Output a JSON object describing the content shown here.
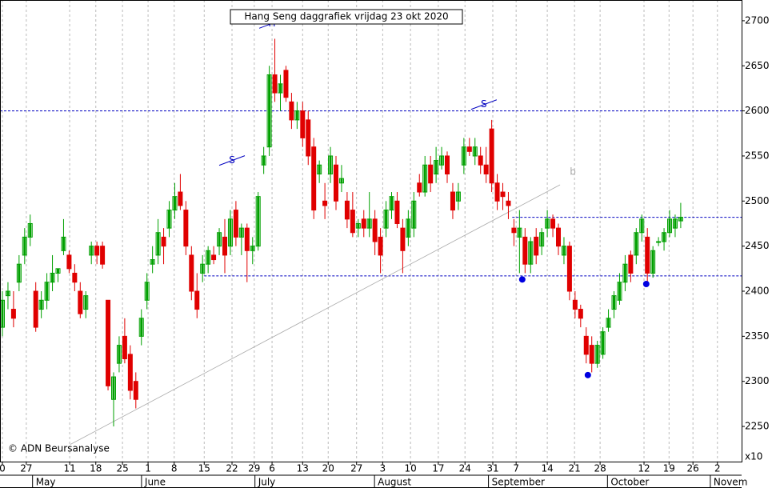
{
  "chart_data": {
    "type": "candlestick",
    "title": "Hang Seng daggrafiek vrijdag 23 okt 2020",
    "credit": "© ADN Beursanalyse",
    "multiplier": "x10",
    "colors": {
      "up": "#00a000",
      "down": "#e00000"
    },
    "xlim": [
      -0.43,
      132.95
    ],
    "ylim": [
      2211,
      2723
    ],
    "yticks": [
      2250,
      2300,
      2350,
      2400,
      2450,
      2500,
      2550,
      2600,
      2650,
      2700
    ],
    "xticks": [
      {
        "value": 0,
        "label": "0"
      },
      {
        "value": 4.3,
        "label": "27"
      },
      {
        "value": 12.1,
        "label": "11"
      },
      {
        "value": 16.8,
        "label": "18"
      },
      {
        "value": 21.6,
        "label": "25"
      },
      {
        "value": 26.2,
        "label": "1"
      },
      {
        "value": 30.9,
        "label": "8"
      },
      {
        "value": 36.3,
        "label": "15"
      },
      {
        "value": 41.3,
        "label": "22"
      },
      {
        "value": 45.3,
        "label": "29"
      },
      {
        "value": 48.5,
        "label": "6"
      },
      {
        "value": 54,
        "label": "13"
      },
      {
        "value": 58.6,
        "label": "20"
      },
      {
        "value": 63.7,
        "label": "27"
      },
      {
        "value": 68.4,
        "label": "3"
      },
      {
        "value": 73.4,
        "label": "10"
      },
      {
        "value": 78.4,
        "label": "17"
      },
      {
        "value": 83.2,
        "label": "24"
      },
      {
        "value": 88.2,
        "label": "31"
      },
      {
        "value": 92.4,
        "label": "7"
      },
      {
        "value": 98,
        "label": "14"
      },
      {
        "value": 102.9,
        "label": "21"
      },
      {
        "value": 107.5,
        "label": "28"
      },
      {
        "value": 115.4,
        "label": "12"
      },
      {
        "value": 119.9,
        "label": "19"
      },
      {
        "value": 124.2,
        "label": "26"
      },
      {
        "value": 128.6,
        "label": "2"
      }
    ],
    "months": [
      {
        "value": 6,
        "label": "May"
      },
      {
        "value": 25.6,
        "label": "June"
      },
      {
        "value": 46,
        "label": "July"
      },
      {
        "value": 67.5,
        "label": "August"
      },
      {
        "value": 88,
        "label": "September"
      },
      {
        "value": 109.4,
        "label": "October"
      },
      {
        "value": 127.9,
        "label": "Novem"
      }
    ],
    "hlines": [
      {
        "value": 2600,
        "from": -0.43
      },
      {
        "value": 2482,
        "from": 91.7
      },
      {
        "value": 2417,
        "from": 36.3
      }
    ],
    "trendline": {
      "x": [
        12.2,
        100.3
      ],
      "y": [
        2230,
        2518
      ]
    },
    "markers": [
      {
        "x": 93.5,
        "y": 2413
      },
      {
        "x": 105.3,
        "y": 2307
      },
      {
        "x": 115.8,
        "y": 2408
      }
    ],
    "annotations": [
      {
        "x": 48.5,
        "y": 2697,
        "text": "H"
      },
      {
        "x": 41.3,
        "y": 2545,
        "text": "S"
      },
      {
        "x": 86.6,
        "y": 2607,
        "text": "S"
      },
      {
        "x": 102.6,
        "y": 2532,
        "text": "b"
      }
    ],
    "candles": [
      [
        2360,
        2400,
        2350,
        2390
      ],
      [
        2395,
        2410,
        2380,
        2400
      ],
      [
        2380,
        2400,
        2360,
        2370
      ],
      [
        2410,
        2440,
        2400,
        2430
      ],
      [
        2440,
        2470,
        2430,
        2460
      ],
      [
        2460,
        2485,
        2450,
        2475
      ],
      [
        2400,
        2410,
        2355,
        2360
      ],
      [
        2380,
        2400,
        2370,
        2390
      ],
      [
        2390,
        2420,
        2380,
        2410
      ],
      [
        2410,
        2440,
        2400,
        2420
      ],
      [
        2420,
        2425,
        2410,
        2425
      ],
      [
        2445,
        2480,
        2440,
        2460
      ],
      [
        2440,
        2445,
        2420,
        2425
      ],
      [
        2420,
        2430,
        2400,
        2410
      ],
      [
        2400,
        2410,
        2370,
        2375
      ],
      [
        2380,
        2400,
        2370,
        2395
      ],
      [
        2440,
        2455,
        2430,
        2450
      ],
      [
        2450,
        2455,
        2430,
        2440
      ],
      [
        2450,
        2455,
        2425,
        2430
      ],
      [
        2390,
        2390,
        2290,
        2295
      ],
      [
        2280,
        2310,
        2250,
        2305
      ],
      [
        2320,
        2350,
        2310,
        2340
      ],
      [
        2350,
        2370,
        2320,
        2325
      ],
      [
        2330,
        2340,
        2280,
        2290
      ],
      [
        2300,
        2310,
        2270,
        2280
      ],
      [
        2350,
        2380,
        2340,
        2370
      ],
      [
        2390,
        2420,
        2380,
        2410
      ],
      [
        2430,
        2450,
        2420,
        2435
      ],
      [
        2440,
        2480,
        2430,
        2465
      ],
      [
        2460,
        2470,
        2430,
        2450
      ],
      [
        2470,
        2500,
        2460,
        2490
      ],
      [
        2490,
        2520,
        2480,
        2505
      ],
      [
        2510,
        2530,
        2490,
        2495
      ],
      [
        2490,
        2500,
        2440,
        2450
      ],
      [
        2440,
        2450,
        2390,
        2400
      ],
      [
        2400,
        2420,
        2370,
        2380
      ],
      [
        2420,
        2440,
        2410,
        2430
      ],
      [
        2430,
        2450,
        2420,
        2445
      ],
      [
        2440,
        2450,
        2430,
        2435
      ],
      [
        2450,
        2470,
        2440,
        2465
      ],
      [
        2460,
        2480,
        2420,
        2440
      ],
      [
        2450,
        2490,
        2440,
        2480
      ],
      [
        2490,
        2500,
        2450,
        2460
      ],
      [
        2460,
        2475,
        2440,
        2470
      ],
      [
        2470,
        2475,
        2410,
        2445
      ],
      [
        2445,
        2460,
        2430,
        2450
      ],
      [
        2450,
        2510,
        2445,
        2505
      ],
      [
        2540,
        2560,
        2530,
        2550
      ],
      [
        2560,
        2650,
        2550,
        2640
      ],
      [
        2640,
        2680,
        2610,
        2620
      ],
      [
        2620,
        2640,
        2600,
        2630
      ],
      [
        2645,
        2650,
        2610,
        2615
      ],
      [
        2610,
        2620,
        2580,
        2590
      ],
      [
        2590,
        2610,
        2580,
        2600
      ],
      [
        2600,
        2610,
        2560,
        2570
      ],
      [
        2590,
        2600,
        2540,
        2550
      ],
      [
        2560,
        2570,
        2480,
        2490
      ],
      [
        2530,
        2545,
        2520,
        2540
      ],
      [
        2500,
        2520,
        2480,
        2495
      ],
      [
        2530,
        2560,
        2520,
        2550
      ],
      [
        2540,
        2550,
        2490,
        2500
      ],
      [
        2520,
        2540,
        2510,
        2525
      ],
      [
        2500,
        2510,
        2470,
        2480
      ],
      [
        2490,
        2510,
        2460,
        2465
      ],
      [
        2470,
        2480,
        2460,
        2475
      ],
      [
        2480,
        2490,
        2460,
        2470
      ],
      [
        2470,
        2510,
        2460,
        2480
      ],
      [
        2480,
        2490,
        2440,
        2455
      ],
      [
        2460,
        2470,
        2420,
        2440
      ],
      [
        2470,
        2500,
        2460,
        2490
      ],
      [
        2490,
        2510,
        2480,
        2505
      ],
      [
        2500,
        2510,
        2470,
        2475
      ],
      [
        2470,
        2480,
        2420,
        2445
      ],
      [
        2460,
        2490,
        2450,
        2480
      ],
      [
        2470,
        2510,
        2460,
        2500
      ],
      [
        2520,
        2530,
        2505,
        2510
      ],
      [
        2510,
        2550,
        2505,
        2540
      ],
      [
        2540,
        2550,
        2510,
        2520
      ],
      [
        2530,
        2560,
        2520,
        2545
      ],
      [
        2540,
        2560,
        2535,
        2550
      ],
      [
        2550,
        2555,
        2520,
        2530
      ],
      [
        2510,
        2520,
        2480,
        2490
      ],
      [
        2500,
        2520,
        2490,
        2510
      ],
      [
        2540,
        2570,
        2530,
        2560
      ],
      [
        2560,
        2570,
        2550,
        2555
      ],
      [
        2550,
        2570,
        2540,
        2560
      ],
      [
        2550,
        2560,
        2530,
        2540
      ],
      [
        2540,
        2560,
        2520,
        2530
      ],
      [
        2580,
        2590,
        2510,
        2520
      ],
      [
        2520,
        2530,
        2490,
        2500
      ],
      [
        2510,
        2520,
        2490,
        2505
      ],
      [
        2500,
        2510,
        2480,
        2495
      ],
      [
        2470,
        2480,
        2450,
        2465
      ],
      [
        2460,
        2490,
        2420,
        2470
      ],
      [
        2460,
        2470,
        2420,
        2430
      ],
      [
        2430,
        2460,
        2420,
        2455
      ],
      [
        2460,
        2470,
        2430,
        2440
      ],
      [
        2450,
        2470,
        2440,
        2465
      ],
      [
        2470,
        2490,
        2460,
        2480
      ],
      [
        2480,
        2485,
        2460,
        2470
      ],
      [
        2470,
        2475,
        2440,
        2450
      ],
      [
        2440,
        2460,
        2430,
        2450
      ],
      [
        2450,
        2455,
        2390,
        2400
      ],
      [
        2390,
        2400,
        2370,
        2380
      ],
      [
        2380,
        2385,
        2360,
        2370
      ],
      [
        2350,
        2360,
        2320,
        2330
      ],
      [
        2340,
        2350,
        2310,
        2320
      ],
      [
        2320,
        2345,
        2315,
        2340
      ],
      [
        2330,
        2360,
        2325,
        2355
      ],
      [
        2360,
        2380,
        2355,
        2370
      ],
      [
        2380,
        2400,
        2370,
        2395
      ],
      [
        2390,
        2420,
        2385,
        2410
      ],
      [
        2410,
        2440,
        2400,
        2430
      ],
      [
        2440,
        2445,
        2410,
        2420
      ],
      [
        2440,
        2470,
        2430,
        2465
      ],
      [
        2465,
        2485,
        2455,
        2480
      ],
      [
        2460,
        2470,
        2410,
        2420
      ],
      [
        2420,
        2450,
        2415,
        2445
      ],
      [
        2455,
        2460,
        2450,
        2455
      ],
      [
        2455,
        2470,
        2445,
        2465
      ],
      [
        2465,
        2490,
        2460,
        2480
      ],
      [
        2470,
        2485,
        2460,
        2480
      ],
      [
        2478,
        2498,
        2470,
        2482
      ]
    ]
  }
}
